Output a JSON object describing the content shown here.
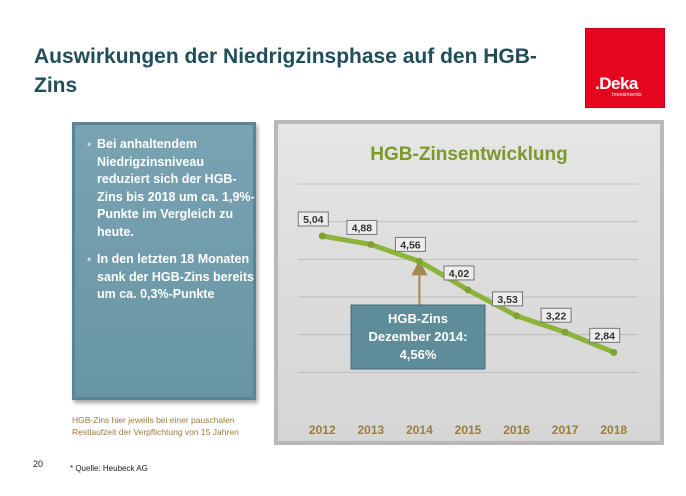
{
  "slide": {
    "title": "Auswirkungen der Niedrigzinsphase auf den HGB-Zins",
    "page_number": "20",
    "source": "* Quelle: Heubeck AG",
    "footnote_line1": "HGB-Zins hier jeweils bei einer pauschalen",
    "footnote_line2": "Restlaufzeit der Verpflichtung von 15 Jahren"
  },
  "logo": {
    "brand": ".Deka",
    "sub": "Investments",
    "color": "#e5051d"
  },
  "bullets": [
    "Bei anhaltendem Niedrigzinsniveau reduziert sich der HGB-Zins bis 2018 um ca. 1,9%-Punkte im Vergleich zu heute.",
    "In den letzten 18 Monaten sank der HGB-Zins bereits um ca. 0,3%-Punkte"
  ],
  "callout": {
    "line1": "HGB-Zins",
    "line2": "Dezember 2014:",
    "line3": "4,56%"
  },
  "chart_data": {
    "type": "line",
    "title": "HGB-Zinsentwicklung",
    "categories": [
      "2012",
      "2013",
      "2014",
      "2015",
      "2016",
      "2017",
      "2018"
    ],
    "values": [
      5.04,
      4.88,
      4.56,
      4.02,
      3.53,
      3.22,
      2.84
    ],
    "labels": [
      "5,04",
      "4,88",
      "4,56",
      "4,02",
      "3,53",
      "3,22",
      "2,84"
    ],
    "ylim": [
      1.75,
      6.25
    ],
    "grid": true,
    "line_color": "#8cb33a",
    "title_color": "#7a9a2a"
  }
}
